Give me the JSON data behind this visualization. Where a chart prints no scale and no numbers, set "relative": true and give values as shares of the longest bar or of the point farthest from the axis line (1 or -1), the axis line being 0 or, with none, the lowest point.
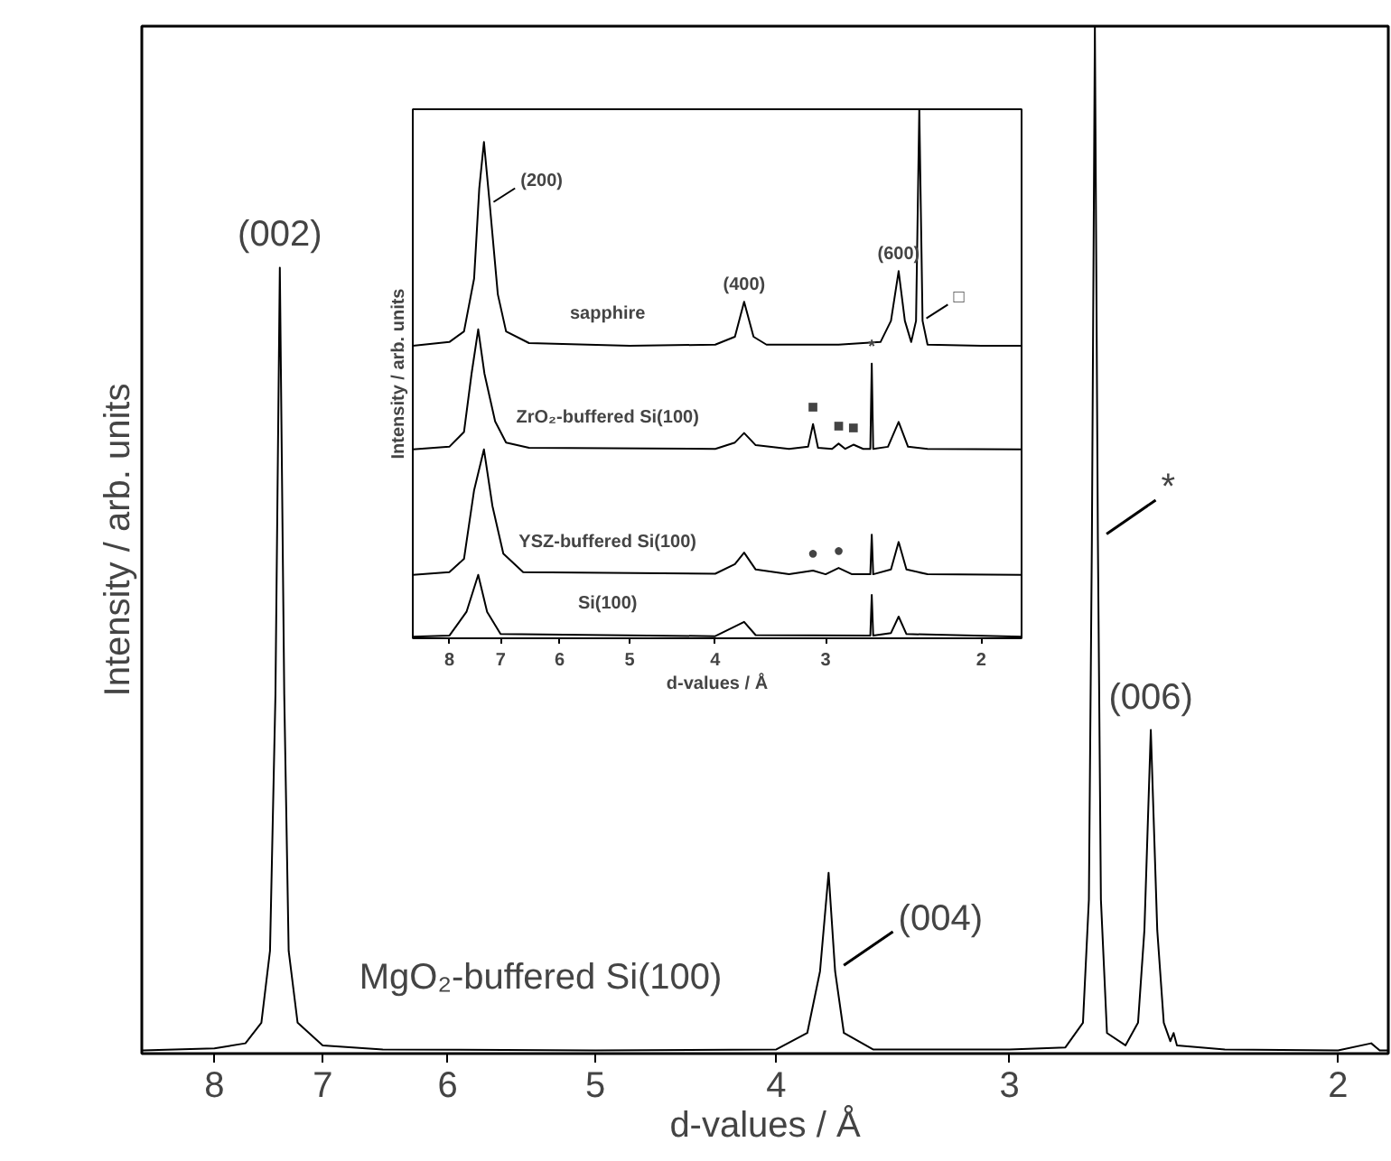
{
  "chart_data": [
    {
      "type": "line",
      "xlabel": "d-values / Å",
      "ylabel": "Intensity / arb. units",
      "relative": true,
      "log": "x",
      "xlim": [
        8.75,
        1.88
      ],
      "xticks": [
        8,
        7,
        6,
        5,
        4,
        3,
        2
      ],
      "grid": false,
      "marker": "none",
      "line_style": "solid",
      "series": [
        {
          "name": "MgO₂-buffered Si(100)",
          "color": "#000000",
          "x": [
            8.74,
            8.0,
            7.7,
            7.55,
            7.47,
            7.42,
            7.38,
            7.34,
            7.3,
            7.22,
            7.0,
            6.5,
            5.0,
            4.0,
            3.85,
            3.79,
            3.75,
            3.72,
            3.68,
            3.55,
            3.0,
            2.8,
            2.74,
            2.72,
            2.71,
            2.7,
            2.69,
            2.68,
            2.66,
            2.6,
            2.56,
            2.54,
            2.52,
            2.5,
            2.48,
            2.46,
            2.45,
            2.44,
            2.3,
            2.0,
            1.92,
            1.9,
            1.88
          ],
          "values": [
            0.003,
            0.005,
            0.01,
            0.03,
            0.1,
            0.35,
            0.765,
            0.35,
            0.1,
            0.03,
            0.008,
            0.004,
            0.003,
            0.004,
            0.02,
            0.08,
            0.176,
            0.08,
            0.02,
            0.004,
            0.004,
            0.006,
            0.03,
            0.15,
            0.5,
            1.0,
            0.5,
            0.15,
            0.02,
            0.008,
            0.03,
            0.12,
            0.315,
            0.12,
            0.03,
            0.012,
            0.02,
            0.008,
            0.004,
            0.003,
            0.01,
            0.003,
            0.003
          ]
        }
      ],
      "annotations": [
        {
          "text": "(002)",
          "x": 7.38,
          "y": 0.765
        },
        {
          "text": "(004)",
          "x": 3.72,
          "y": 0.08
        },
        {
          "text": "(006)",
          "x": 2.52,
          "y": 0.315
        },
        {
          "text": "*",
          "x": 2.69,
          "y": 0.5
        }
      ]
    },
    {
      "type": "line",
      "xlabel": "d-values / Å",
      "ylabel": "Intensity / arb. units",
      "relative": true,
      "log": "x",
      "xlim": [
        8.8,
        1.8
      ],
      "xticks": [
        8,
        7,
        6,
        5,
        4,
        3,
        2
      ],
      "grid": false,
      "marker": "none",
      "line_style": "solid",
      "series": [
        {
          "name": "sapphire",
          "color": "#000000",
          "x": [
            8.8,
            8.0,
            7.7,
            7.5,
            7.4,
            7.31,
            7.2,
            7.05,
            6.9,
            6.5,
            5.0,
            4.0,
            3.8,
            3.71,
            3.62,
            3.5,
            2.9,
            2.6,
            2.53,
            2.48,
            2.44,
            2.4,
            2.37,
            2.35,
            2.33,
            2.3,
            2.0,
            1.8
          ],
          "values": [
            0.553,
            0.56,
            0.58,
            0.68,
            0.85,
            0.938,
            0.82,
            0.65,
            0.58,
            0.558,
            0.553,
            0.555,
            0.57,
            0.636,
            0.57,
            0.555,
            0.555,
            0.56,
            0.6,
            0.694,
            0.6,
            0.56,
            0.6,
            1.0,
            0.6,
            0.555,
            0.553,
            0.553
          ]
        },
        {
          "name": "ZrO₂-buffered Si(100)",
          "color": "#000000",
          "x": [
            8.8,
            8.0,
            7.7,
            7.55,
            7.42,
            7.3,
            7.1,
            6.9,
            6.5,
            4.0,
            3.8,
            3.71,
            3.6,
            3.3,
            3.14,
            3.1,
            3.06,
            2.95,
            2.9,
            2.85,
            2.79,
            2.72,
            2.67,
            2.66,
            2.65,
            2.55,
            2.48,
            2.42,
            2.3,
            1.8
          ],
          "values": [
            0.357,
            0.362,
            0.39,
            0.5,
            0.584,
            0.5,
            0.41,
            0.37,
            0.36,
            0.358,
            0.37,
            0.388,
            0.365,
            0.358,
            0.362,
            0.405,
            0.36,
            0.358,
            0.368,
            0.358,
            0.366,
            0.358,
            0.358,
            0.519,
            0.358,
            0.362,
            0.409,
            0.362,
            0.358,
            0.357
          ]
        },
        {
          "name": "YSZ-buffered Si(100)",
          "color": "#000000",
          "x": [
            8.8,
            8.0,
            7.7,
            7.5,
            7.31,
            7.15,
            6.95,
            6.6,
            4.0,
            3.8,
            3.71,
            3.6,
            3.3,
            3.1,
            3.0,
            2.9,
            2.8,
            2.67,
            2.66,
            2.65,
            2.53,
            2.48,
            2.43,
            2.3,
            1.8
          ],
          "values": [
            0.12,
            0.125,
            0.15,
            0.28,
            0.357,
            0.25,
            0.16,
            0.125,
            0.122,
            0.14,
            0.162,
            0.13,
            0.121,
            0.128,
            0.121,
            0.133,
            0.121,
            0.121,
            0.196,
            0.121,
            0.13,
            0.182,
            0.13,
            0.121,
            0.12
          ]
        },
        {
          "name": "Si(100)",
          "color": "#000000",
          "x": [
            8.8,
            8.0,
            7.65,
            7.42,
            7.25,
            7.0,
            4.0,
            3.71,
            3.6,
            2.67,
            2.66,
            2.65,
            2.53,
            2.48,
            2.43,
            1.8
          ],
          "values": [
            0.003,
            0.005,
            0.05,
            0.12,
            0.05,
            0.008,
            0.004,
            0.031,
            0.006,
            0.005,
            0.082,
            0.005,
            0.01,
            0.041,
            0.008,
            0.003
          ]
        }
      ],
      "annotations": [
        {
          "text": "(200)",
          "x": 7.2,
          "y": 0.82
        },
        {
          "text": "(400)",
          "x": 3.71,
          "y": 0.636
        },
        {
          "text": "(600)",
          "x": 2.48,
          "y": 0.694
        },
        {
          "text": "□",
          "x": 2.33,
          "y": 0.6
        },
        {
          "text": "■",
          "x": 3.1,
          "y": 0.405
        },
        {
          "text": "■",
          "x": 2.9,
          "y": 0.368
        },
        {
          "text": "■",
          "x": 2.79,
          "y": 0.366
        },
        {
          "text": "*",
          "x": 2.66,
          "y": 0.519
        },
        {
          "text": "●",
          "x": 3.1,
          "y": 0.128
        },
        {
          "text": "●",
          "x": 2.9,
          "y": 0.133
        }
      ]
    }
  ]
}
